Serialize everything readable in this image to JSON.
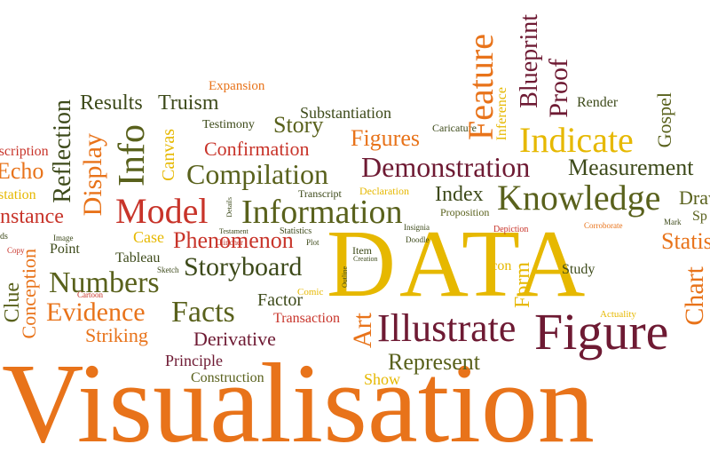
{
  "palette": {
    "orange": "#e8731a",
    "gold": "#e6b800",
    "olive": "#59611c",
    "maroon": "#6e1a33",
    "red": "#c8342a",
    "darkgreen": "#3d4a1a"
  },
  "words": {
    "visualisation": "Visualisation",
    "data": "DATA",
    "figure": "Figure",
    "illustrate": "Illustrate",
    "information": "Information",
    "knowledge": "Knowledge",
    "demonstration": "Demonstration",
    "model": "Model",
    "compilation": "Compilation",
    "indicate": "Indicate",
    "feature": "Feature",
    "numbers": "Numbers",
    "facts": "Facts",
    "evidence": "Evidence",
    "storyboard": "Storyboard",
    "phenomenon": "Phenomenon",
    "represent": "Represent",
    "info": "Info",
    "display": "Display",
    "reflection": "Reflection",
    "figures": "Figures",
    "story": "Story",
    "confirmation": "Confirmation",
    "results": "Results",
    "truism": "Truism",
    "blueprint": "Blueprint",
    "proof": "Proof",
    "measurement": "Measurement",
    "index": "Index",
    "art": "Art",
    "derivative": "Derivative",
    "striking": "Striking",
    "principle": "Principle",
    "construction": "Construction",
    "show": "Show",
    "factor": "Factor",
    "transaction": "Transaction",
    "conception": "Conception",
    "clue": "Clue",
    "instance": "Instance",
    "echo": "Echo",
    "description": "Description",
    "station": "station",
    "canvas": "Canvas",
    "expansion": "Expansion",
    "substantiation": "Substantiation",
    "testimony": "Testimony",
    "caricature": "Caricature",
    "inference": "Inference",
    "render": "Render",
    "gospel": "Gospel",
    "transcript": "Transcript",
    "declaration": "Declaration",
    "proposition": "Proposition",
    "tableau": "Tableau",
    "case": "Case",
    "point": "Point",
    "study": "Study",
    "icon": "Icon",
    "form": "Form",
    "item": "Item",
    "comic": "Comic",
    "actuality": "Actuality",
    "statistics": "Statistics",
    "chart": "Chart",
    "draw": "Draw",
    "sp": "Sp",
    "depiction": "Depiction",
    "corroborate": "Corroborate",
    "insignia": "Insignia",
    "doodle": "Doodle",
    "sketch": "Sketch",
    "cartoon": "Cartoon",
    "image": "Image",
    "copy": "Copy",
    "testament": "Testament",
    "clincher": "Clincher",
    "plot": "Plot",
    "creation": "Creation",
    "outline": "Outline",
    "details": "Details",
    "mark": "Mark",
    "ds": "ds"
  }
}
